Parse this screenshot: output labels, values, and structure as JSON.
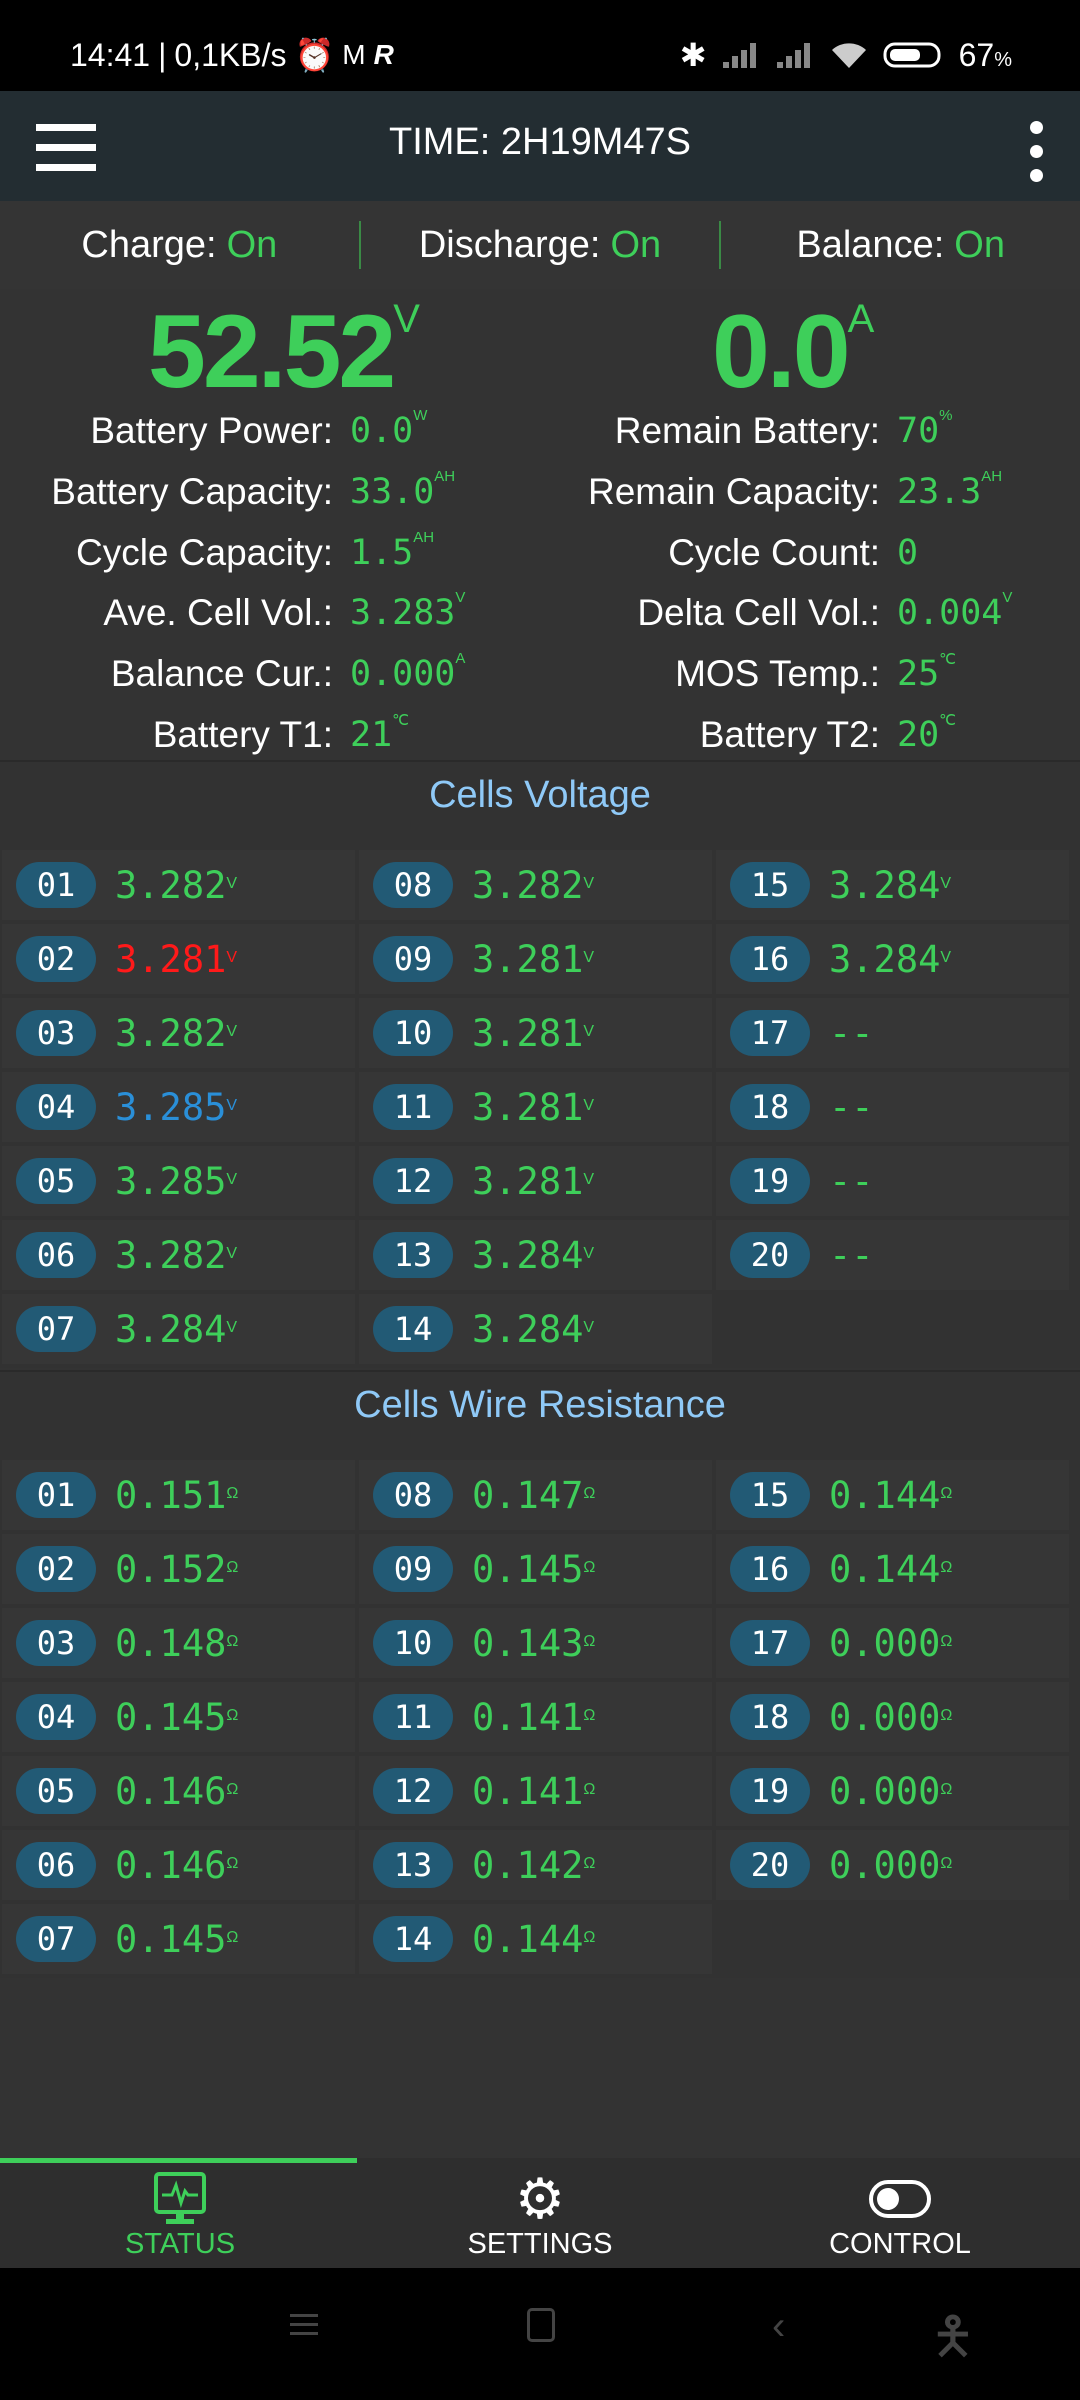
{
  "status_bar": {
    "time": "14:41",
    "speed": "0,1KB/s",
    "battery": "67",
    "battery_unit": "%"
  },
  "app_bar": {
    "title": "TIME: 2H19M47S"
  },
  "switches": [
    {
      "label": "Charge:",
      "value": "On"
    },
    {
      "label": "Discharge:",
      "value": "On"
    },
    {
      "label": "Balance:",
      "value": "On"
    }
  ],
  "main": {
    "voltage": {
      "value": "52.52",
      "unit": "V"
    },
    "current": {
      "value": "0.0",
      "unit": "A"
    },
    "left": [
      {
        "label": "Battery Power:",
        "value": "0.0",
        "unit": "W"
      },
      {
        "label": "Battery Capacity:",
        "value": "33.0",
        "unit": "AH"
      },
      {
        "label": "Cycle Capacity:",
        "value": "1.5",
        "unit": "AH"
      },
      {
        "label": "Ave. Cell Vol.:",
        "value": "3.283",
        "unit": "V"
      },
      {
        "label": "Balance Cur.:",
        "value": "0.000",
        "unit": "A"
      },
      {
        "label": "Battery T1:",
        "value": "21",
        "unit": "℃"
      }
    ],
    "right": [
      {
        "label": "Remain Battery:",
        "value": "70",
        "unit": "%"
      },
      {
        "label": "Remain Capacity:",
        "value": "23.3",
        "unit": "AH"
      },
      {
        "label": "Cycle Count:",
        "value": "0",
        "unit": ""
      },
      {
        "label": "Delta Cell Vol.:",
        "value": "0.004",
        "unit": "V"
      },
      {
        "label": "MOS Temp.:",
        "value": "25",
        "unit": "℃"
      },
      {
        "label": "Battery T2:",
        "value": "20",
        "unit": "℃"
      }
    ]
  },
  "colors": {
    "normal": "#3ecf5a",
    "min": "#ff1a1a",
    "max": "#2a8fd8",
    "title": "#8fc9f7",
    "badge": "#225a75"
  },
  "cells_voltage": {
    "title": "Cells Voltage",
    "unit": "V",
    "cells": [
      {
        "id": "01",
        "value": "3.282"
      },
      {
        "id": "02",
        "value": "3.281",
        "state": "min"
      },
      {
        "id": "03",
        "value": "3.282"
      },
      {
        "id": "04",
        "value": "3.285",
        "state": "max"
      },
      {
        "id": "05",
        "value": "3.285"
      },
      {
        "id": "06",
        "value": "3.282"
      },
      {
        "id": "07",
        "value": "3.284"
      },
      {
        "id": "08",
        "value": "3.282"
      },
      {
        "id": "09",
        "value": "3.281"
      },
      {
        "id": "10",
        "value": "3.281"
      },
      {
        "id": "11",
        "value": "3.281"
      },
      {
        "id": "12",
        "value": "3.281"
      },
      {
        "id": "13",
        "value": "3.284"
      },
      {
        "id": "14",
        "value": "3.284"
      },
      {
        "id": "15",
        "value": "3.284"
      },
      {
        "id": "16",
        "value": "3.284"
      },
      {
        "id": "17",
        "value": "--",
        "empty": true
      },
      {
        "id": "18",
        "value": "--",
        "empty": true
      },
      {
        "id": "19",
        "value": "--",
        "empty": true
      },
      {
        "id": "20",
        "value": "--",
        "empty": true
      }
    ]
  },
  "cells_resistance": {
    "title": "Cells Wire Resistance",
    "unit": "Ω",
    "cells": [
      {
        "id": "01",
        "value": "0.151"
      },
      {
        "id": "02",
        "value": "0.152"
      },
      {
        "id": "03",
        "value": "0.148"
      },
      {
        "id": "04",
        "value": "0.145"
      },
      {
        "id": "05",
        "value": "0.146"
      },
      {
        "id": "06",
        "value": "0.146"
      },
      {
        "id": "07",
        "value": "0.145"
      },
      {
        "id": "08",
        "value": "0.147"
      },
      {
        "id": "09",
        "value": "0.145"
      },
      {
        "id": "10",
        "value": "0.143"
      },
      {
        "id": "11",
        "value": "0.141"
      },
      {
        "id": "12",
        "value": "0.141"
      },
      {
        "id": "13",
        "value": "0.142"
      },
      {
        "id": "14",
        "value": "0.144"
      },
      {
        "id": "15",
        "value": "0.144"
      },
      {
        "id": "16",
        "value": "0.144"
      },
      {
        "id": "17",
        "value": "0.000"
      },
      {
        "id": "18",
        "value": "0.000"
      },
      {
        "id": "19",
        "value": "0.000"
      },
      {
        "id": "20",
        "value": "0.000"
      }
    ]
  },
  "bottom_nav": [
    {
      "label": "STATUS",
      "icon": "monitor-pulse-icon",
      "active": true
    },
    {
      "label": "SETTINGS",
      "icon": "gear-icon"
    },
    {
      "label": "CONTROL",
      "icon": "toggle-icon"
    }
  ]
}
